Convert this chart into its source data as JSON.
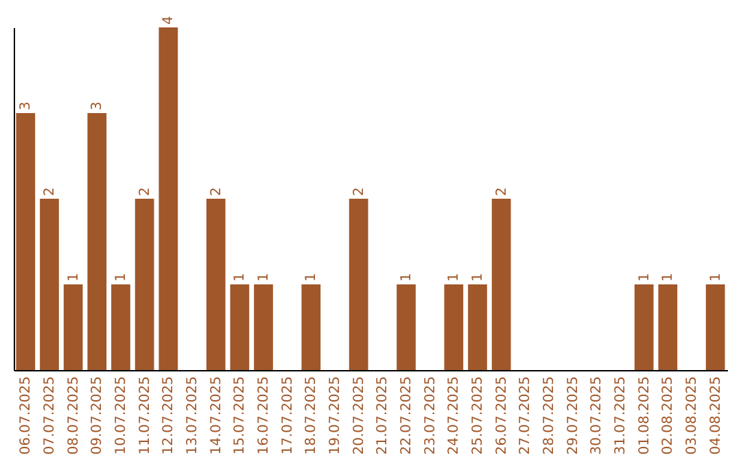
{
  "chart_data": {
    "type": "bar",
    "categories": [
      "06.07.2025",
      "07.07.2025",
      "08.07.2025",
      "09.07.2025",
      "10.07.2025",
      "11.07.2025",
      "12.07.2025",
      "13.07.2025",
      "14.07.2025",
      "15.07.2025",
      "16.07.2025",
      "17.07.2025",
      "18.07.2025",
      "19.07.2025",
      "20.07.2025",
      "21.07.2025",
      "22.07.2025",
      "23.07.2025",
      "24.07.2025",
      "25.07.2025",
      "26.07.2025",
      "27.07.2025",
      "28.07.2025",
      "29.07.2025",
      "30.07.2025",
      "31.07.2025",
      "01.08.2025",
      "02.08.2025",
      "03.08.2025",
      "04.08.2025"
    ],
    "values": [
      3,
      2,
      1,
      3,
      1,
      2,
      4,
      0,
      2,
      1,
      1,
      0,
      1,
      0,
      2,
      0,
      1,
      0,
      1,
      1,
      2,
      0,
      0,
      0,
      0,
      0,
      1,
      1,
      0,
      1
    ],
    "value_labels": [
      "3",
      "2",
      "1",
      "3",
      "1",
      "2",
      "4",
      null,
      "2",
      "1",
      "1",
      null,
      "1",
      null,
      "2",
      null,
      "1",
      null,
      "1",
      "1",
      "2",
      null,
      null,
      null,
      null,
      null,
      "1",
      "1",
      null,
      "1"
    ],
    "color": "#a0572a",
    "ylim": [
      0,
      4
    ],
    "tick_labels": "x",
    "grid": false
  }
}
